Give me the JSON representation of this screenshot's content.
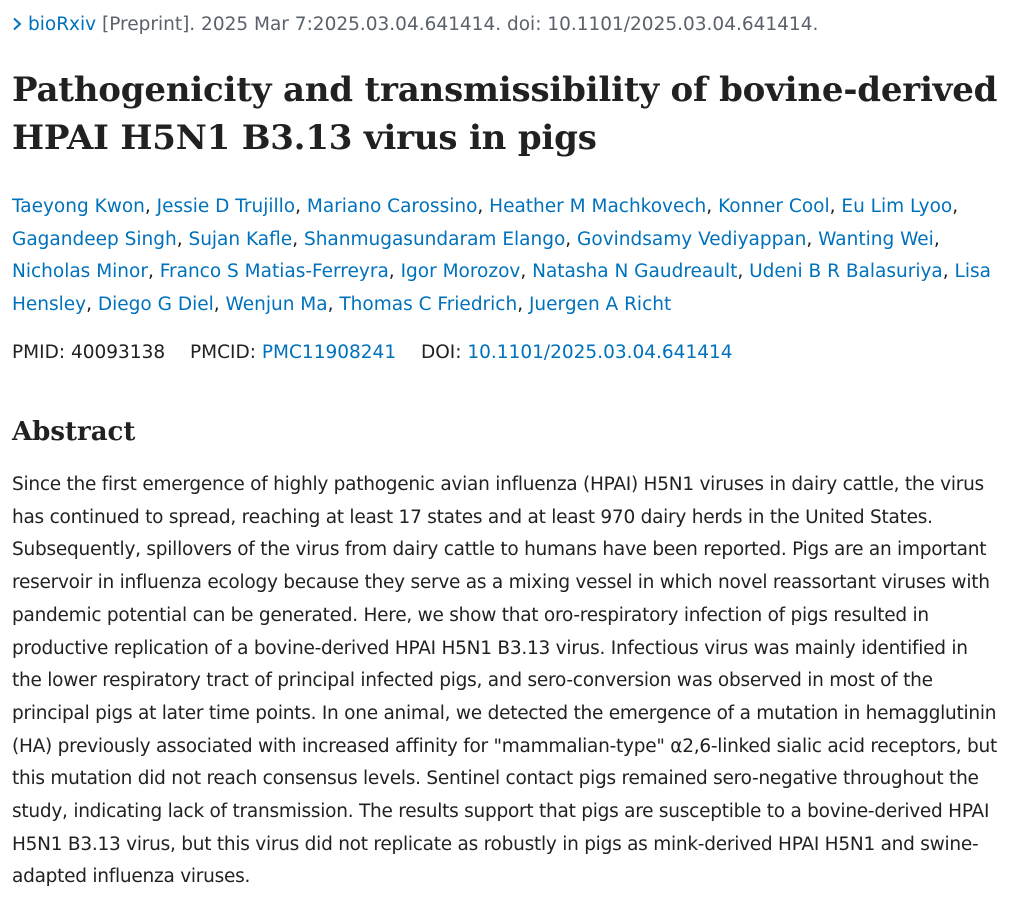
{
  "citation": {
    "journal": "bioRxiv",
    "rest": " [Preprint]. 2025 Mar 7:2025.03.04.641414. doi: 10.1101/2025.03.04.641414."
  },
  "title": "Pathogenicity and transmissibility of bovine-derived HPAI H5N1 B3.13 virus in pigs",
  "authors": [
    "Taeyong Kwon",
    "Jessie D Trujillo",
    "Mariano Carossino",
    "Heather M Machkovech",
    "Konner Cool",
    "Eu Lim Lyoo",
    "Gagandeep Singh",
    "Sujan Kafle",
    "Shanmugasundaram Elango",
    "Govindsamy Vediyappan",
    "Wanting Wei",
    "Nicholas Minor",
    "Franco S Matias-Ferreyra",
    "Igor Morozov",
    "Natasha N Gaudreault",
    "Udeni B R Balasuriya",
    "Lisa Hensley",
    "Diego G Diel",
    "Wenjun Ma",
    "Thomas C Friedrich",
    "Juergen A Richt"
  ],
  "ids": {
    "pmid_label": "PMID:",
    "pmid": "40093138",
    "pmcid_label": "PMCID:",
    "pmcid": "PMC11908241",
    "doi_label": "DOI:",
    "doi": "10.1101/2025.03.04.641414"
  },
  "abstract": {
    "heading": "Abstract",
    "text": "Since the first emergence of highly pathogenic avian influenza (HPAI) H5N1 viruses in dairy cattle, the virus has continued to spread, reaching at least 17 states and at least 970 dairy herds in the United States. Subsequently, spillovers of the virus from dairy cattle to humans have been reported. Pigs are an important reservoir in influenza ecology because they serve as a mixing vessel in which novel reassortant viruses with pandemic potential can be generated. Here, we show that oro-respiratory infection of pigs resulted in productive replication of a bovine-derived HPAI H5N1 B3.13 virus. Infectious virus was mainly identified in the lower respiratory tract of principal infected pigs, and sero-conversion was observed in most of the principal pigs at later time points. In one animal, we detected the emergence of a mutation in hemagglutinin (HA) previously associated with increased affinity for \"mammalian-type\" α2,6-linked sialic acid receptors, but this mutation did not reach consensus levels. Sentinel contact pigs remained sero-negative throughout the study, indicating lack of transmission. The results support that pigs are susceptible to a bovine-derived HPAI H5N1 B3.13 virus, but this virus did not replicate as robustly in pigs as mink-derived HPAI H5N1 and swine-adapted influenza viruses."
  },
  "colors": {
    "link": "#0071bc",
    "text": "#212121",
    "muted": "#5b616b"
  },
  "icons": {
    "citation_toggle": "chevron-right-icon"
  }
}
